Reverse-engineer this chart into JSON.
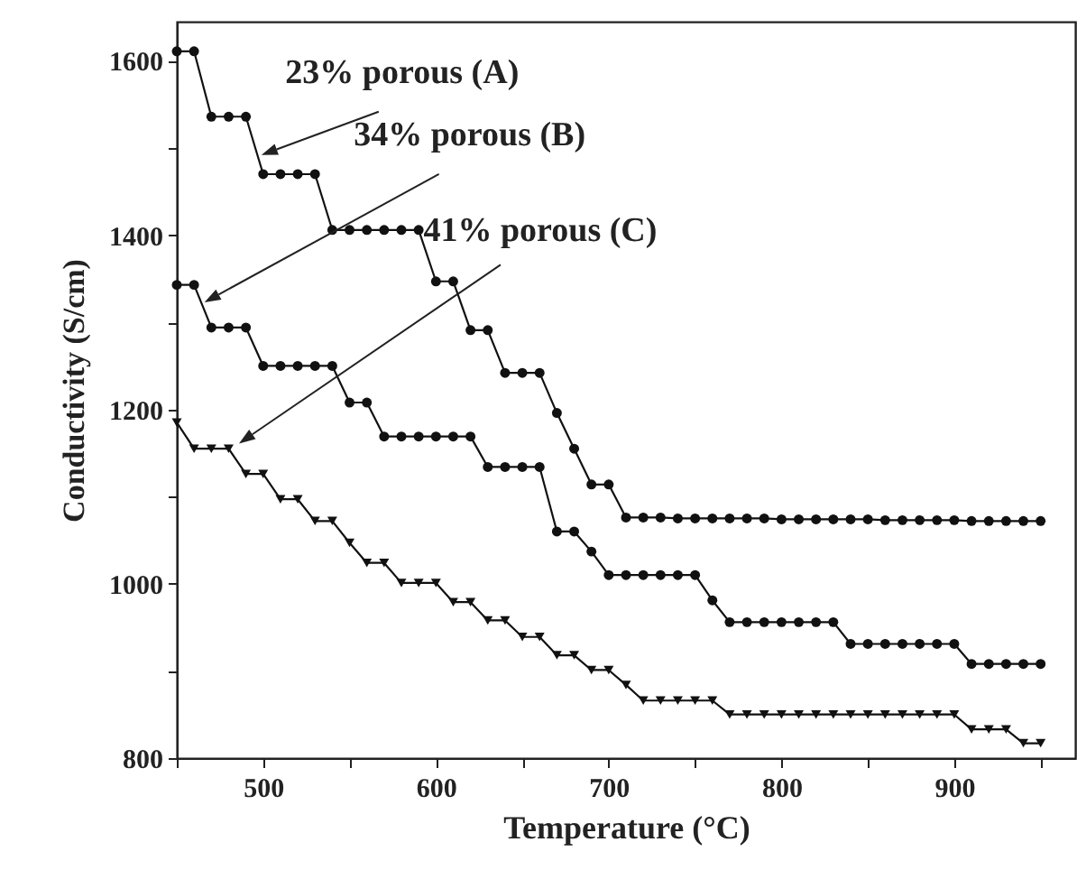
{
  "chart_data": {
    "type": "line",
    "xlabel": "Temperature (°C)",
    "ylabel": "Conductivity (S/cm)",
    "x": [
      450,
      460,
      470,
      480,
      490,
      500,
      510,
      520,
      530,
      540,
      550,
      560,
      570,
      580,
      590,
      600,
      610,
      620,
      630,
      640,
      650,
      660,
      670,
      680,
      690,
      700,
      710,
      720,
      730,
      740,
      750,
      760,
      770,
      780,
      790,
      800,
      810,
      820,
      830,
      840,
      850,
      860,
      870,
      880,
      890,
      900,
      910,
      920,
      930,
      940,
      950
    ],
    "series": [
      {
        "color": "#111111",
        "marker": "circle",
        "values": [
          1611,
          1611,
          1536,
          1536,
          1536,
          1470,
          1470,
          1470,
          1470,
          1406,
          1406,
          1406,
          1406,
          1406,
          1406,
          1347,
          1347,
          1291,
          1291,
          1242,
          1242,
          1242,
          1196,
          1155,
          1114,
          1114,
          1076,
          1076,
          1076,
          1075,
          1075,
          1075,
          1075,
          1075,
          1075,
          1074,
          1074,
          1074,
          1074,
          1074,
          1074,
          1073,
          1073,
          1073,
          1073,
          1073,
          1072,
          1072,
          1072,
          1072,
          1072
        ]
      },
      {
        "color": "#111111",
        "marker": "circle",
        "values": [
          1343,
          1343,
          1294,
          1294,
          1294,
          1250,
          1250,
          1250,
          1250,
          1250,
          1208,
          1208,
          1169,
          1169,
          1169,
          1169,
          1169,
          1169,
          1134,
          1134,
          1134,
          1134,
          1060,
          1060,
          1037,
          1010,
          1010,
          1010,
          1010,
          1010,
          1010,
          981,
          956,
          956,
          956,
          956,
          956,
          956,
          956,
          931,
          931,
          931,
          931,
          931,
          931,
          931,
          908,
          908,
          908,
          908,
          908
        ]
      },
      {
        "color": "#111111",
        "marker": "triangle",
        "values": [
          1185,
          1155,
          1155,
          1155,
          1126,
          1126,
          1097,
          1097,
          1072,
          1072,
          1047,
          1024,
          1024,
          1001,
          1001,
          1001,
          979,
          979,
          958,
          958,
          939,
          939,
          918,
          918,
          901,
          901,
          884,
          866,
          866,
          866,
          866,
          866,
          850,
          850,
          850,
          850,
          850,
          850,
          850,
          850,
          850,
          850,
          850,
          850,
          850,
          850,
          833,
          833,
          833,
          817,
          817
        ]
      }
    ],
    "xlim": [
      450,
      970
    ],
    "ylim": [
      800,
      1645
    ],
    "xticks": [
      {
        "value": 450,
        "label": null
      },
      500,
      {
        "value": 550,
        "label": null
      },
      600,
      {
        "value": 650,
        "label": null
      },
      700,
      {
        "value": 750,
        "label": null
      },
      800,
      {
        "value": 850,
        "label": null
      },
      900,
      {
        "value": 950,
        "label": null
      }
    ],
    "yticks": [
      800,
      {
        "value": 900,
        "label": null
      },
      1000,
      {
        "value": 1100,
        "label": null
      },
      1200,
      {
        "value": 1300,
        "label": null
      },
      1400,
      {
        "value": 1500,
        "label": null
      },
      1600
    ],
    "annotations": [
      {
        "text": "23% porous (A)",
        "x": 499,
        "y": 1492
      },
      {
        "text": "34% porous (B)",
        "x": 466,
        "y": 1323
      },
      {
        "text": "41% porous (C)",
        "x": 486,
        "y": 1161
      }
    ],
    "grid": false
  }
}
